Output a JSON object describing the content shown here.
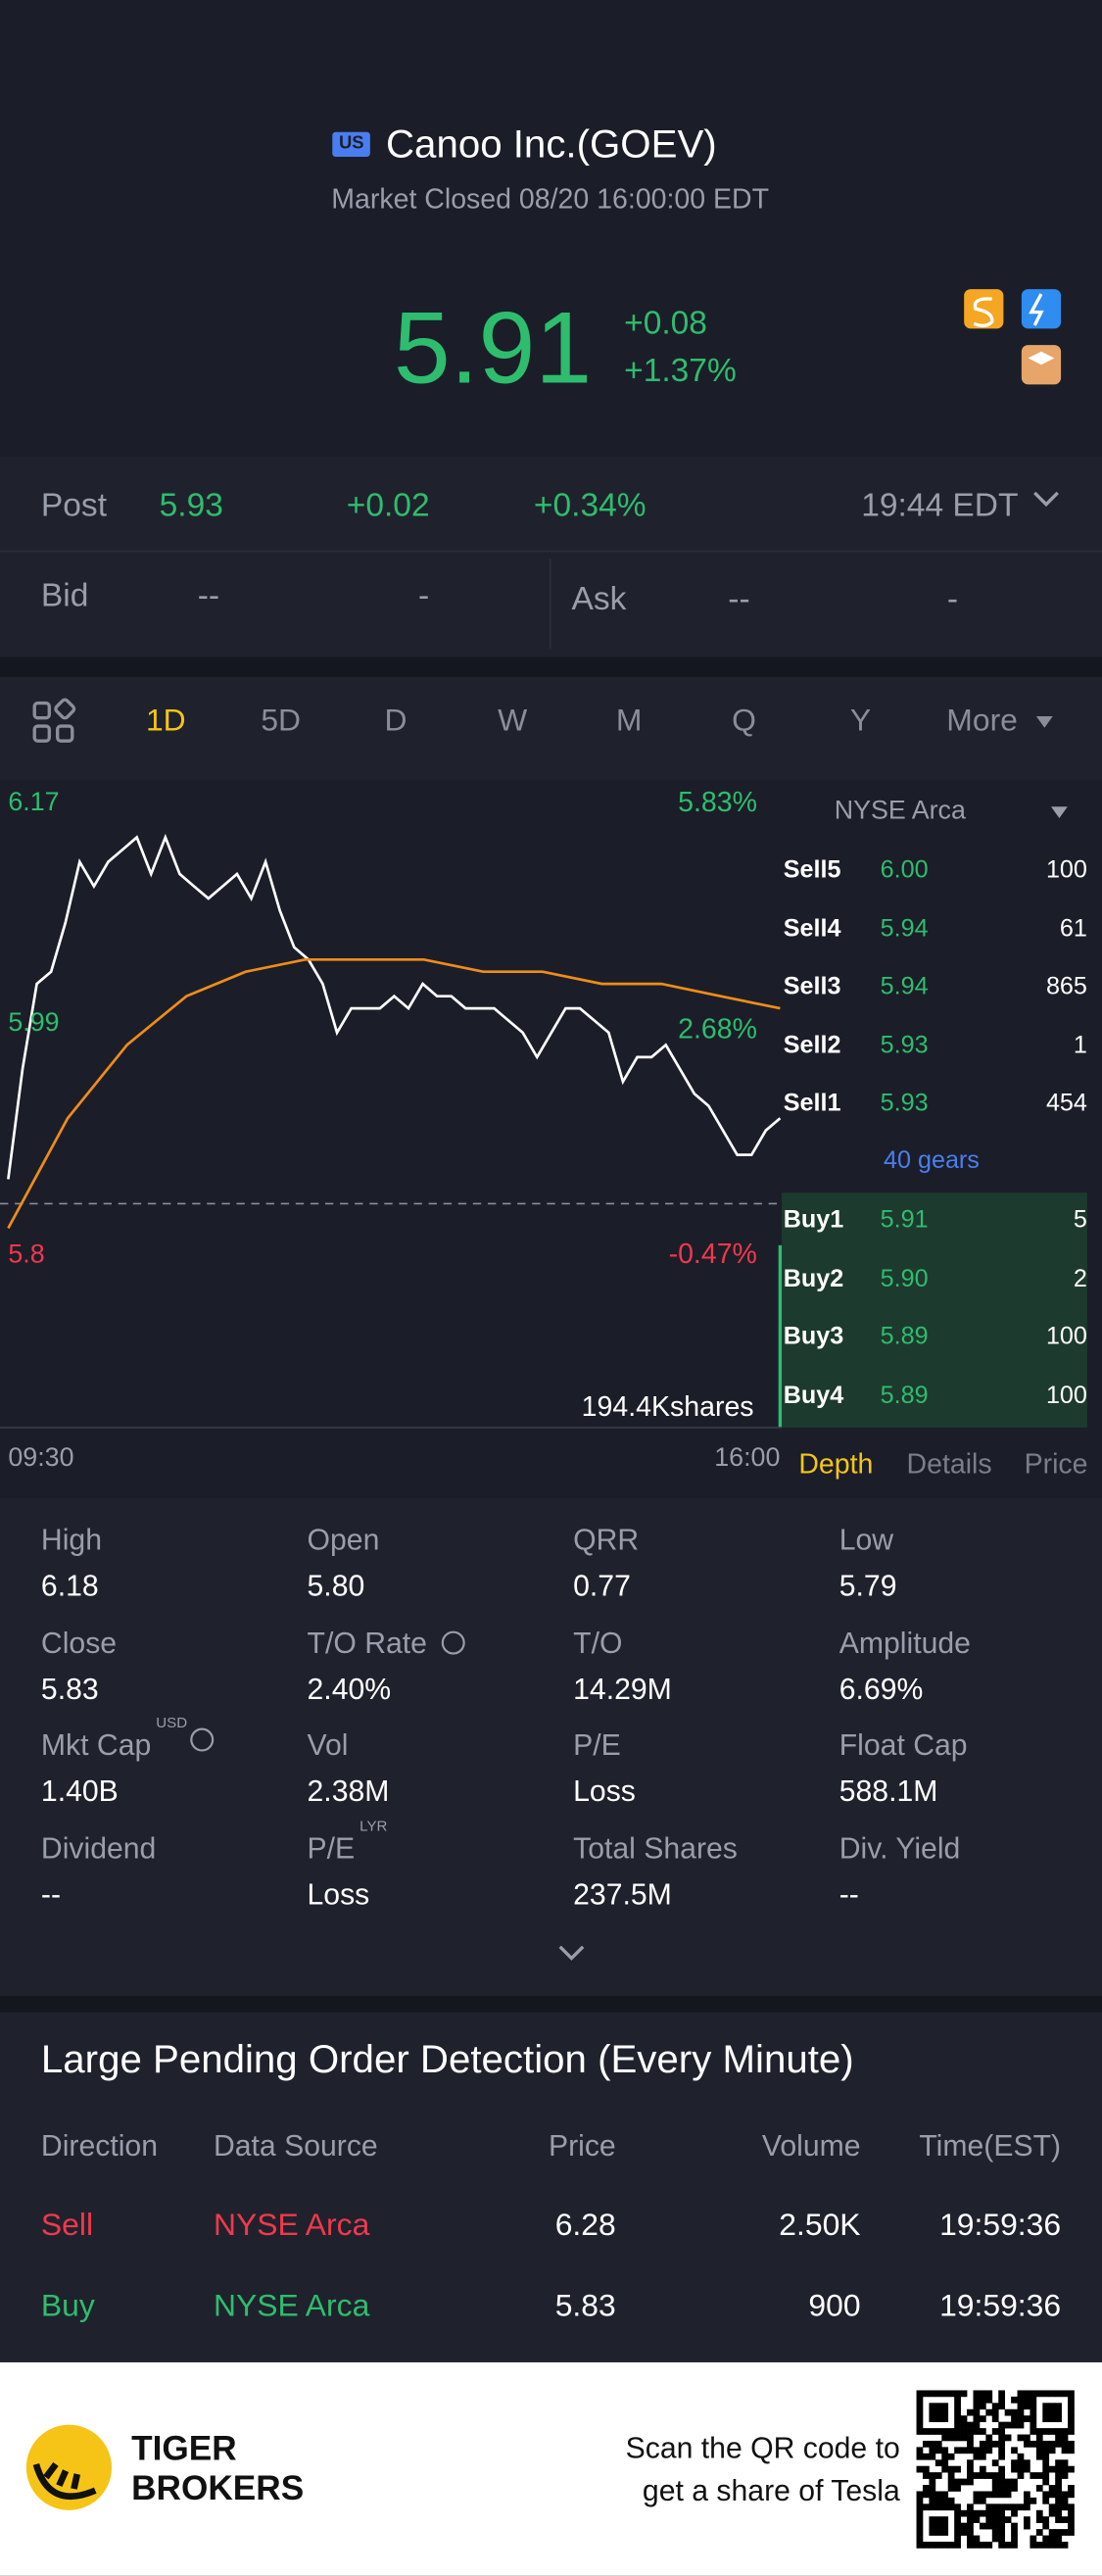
{
  "header": {
    "badge": "US",
    "title": "Canoo Inc.(GOEV)",
    "status": "Market Closed 08/20 16:00:00 EDT"
  },
  "quote": {
    "price": "5.91",
    "change": "+0.08",
    "change_pct": "+1.37%"
  },
  "post": {
    "label": "Post",
    "price": "5.93",
    "change": "+0.02",
    "change_pct": "+0.34%",
    "time": "19:44 EDT"
  },
  "bid_ask": {
    "bid_label": "Bid",
    "bid_price": "--",
    "bid_size": "-",
    "ask_label": "Ask",
    "ask_price": "--",
    "ask_size": "-"
  },
  "tabs": [
    "1D",
    "5D",
    "D",
    "W",
    "M",
    "Q",
    "Y",
    "More"
  ],
  "chart_data": {
    "type": "line",
    "ylim": [
      5.8,
      6.17
    ],
    "yticks": [
      6.17,
      5.99,
      5.8
    ],
    "y2lim": [
      -0.47,
      5.83
    ],
    "y2ticks": [
      {
        "value": 5.83,
        "label": "5.83%"
      },
      {
        "value": 2.68,
        "label": "2.68%"
      },
      {
        "value": -0.47,
        "label": "-0.47%"
      }
    ],
    "baseline": 5.83,
    "time_labels": [
      "09:30",
      "16:00"
    ],
    "volume_label": "194.4Kshares",
    "series": [
      {
        "color": "#ffffff",
        "values": [
          5.85,
          5.94,
          6.01,
          6.02,
          6.06,
          6.11,
          6.09,
          6.11,
          6.12,
          6.13,
          6.1,
          6.13,
          6.1,
          6.09,
          6.08,
          6.09,
          6.1,
          6.08,
          6.11,
          6.07,
          6.04,
          6.03,
          6.01,
          5.97,
          5.99,
          5.99,
          5.99,
          6.0,
          5.99,
          6.01,
          6.0,
          6.0,
          5.99,
          5.99,
          5.99,
          5.98,
          5.97,
          5.95,
          5.97,
          5.99,
          5.99,
          5.98,
          5.97,
          5.93,
          5.95,
          5.95,
          5.96,
          5.94,
          5.92,
          5.91,
          5.89,
          5.87,
          5.87,
          5.89,
          5.9
        ]
      },
      {
        "color": "#f08c1a",
        "values": [
          5.81,
          5.9,
          5.96,
          6.0,
          6.02,
          6.03,
          6.03,
          6.03,
          6.02,
          6.02,
          6.01,
          6.01,
          6.0,
          5.99
        ]
      }
    ]
  },
  "order_book": {
    "exchange": "NYSE Arca",
    "sells": [
      [
        "Sell5",
        "6.00",
        "100"
      ],
      [
        "Sell4",
        "5.94",
        "61"
      ],
      [
        "Sell3",
        "5.94",
        "865"
      ],
      [
        "Sell2",
        "5.93",
        "1"
      ],
      [
        "Sell1",
        "5.93",
        "454"
      ]
    ],
    "gears": "40 gears",
    "buys": [
      [
        "Buy1",
        "5.91",
        "5"
      ],
      [
        "Buy2",
        "5.90",
        "2"
      ],
      [
        "Buy3",
        "5.89",
        "100"
      ],
      [
        "Buy4",
        "5.89",
        "100"
      ]
    ],
    "tabs": [
      "Depth",
      "Details",
      "Price"
    ]
  },
  "stats": [
    [
      {
        "label": "High",
        "value": "6.18"
      },
      {
        "label": "Open",
        "value": "5.80"
      },
      {
        "label": "QRR",
        "value": "0.77"
      },
      {
        "label": "Low",
        "value": "5.79"
      }
    ],
    [
      {
        "label": "Close",
        "value": "5.83"
      },
      {
        "label": "T/O Rate",
        "value": "2.40%"
      },
      {
        "label": "T/O",
        "value": "14.29M"
      },
      {
        "label": "Amplitude",
        "value": "6.69%"
      }
    ],
    [
      {
        "label": "Mkt Cap",
        "sup": "USD",
        "value": "1.40B"
      },
      {
        "label": "Vol",
        "value": "2.38M"
      },
      {
        "label": "P/E",
        "value": "Loss"
      },
      {
        "label": "Float Cap",
        "value": "588.1M"
      }
    ],
    [
      {
        "label": "Dividend",
        "value": "--"
      },
      {
        "label": "P/E",
        "sup": "LYR",
        "value": "Loss"
      },
      {
        "label": "Total Shares",
        "value": "237.5M"
      },
      {
        "label": "Div. Yield",
        "value": "--"
      }
    ]
  ],
  "large_orders": {
    "title": "Large Pending Order Detection (Every Minute)",
    "columns": [
      "Direction",
      "Data Source",
      "Price",
      "Volume",
      "Time(EST)"
    ],
    "rows": [
      [
        "Sell",
        "NYSE Arca",
        "6.28",
        "2.50K",
        "19:59:36"
      ],
      [
        "Buy",
        "NYSE Arca",
        "5.83",
        "900",
        "19:59:36"
      ]
    ]
  },
  "footer": {
    "brand": [
      "TIGER",
      "BROKERS"
    ],
    "promo": [
      "Scan the QR code to",
      "get a share of Tesla"
    ]
  }
}
